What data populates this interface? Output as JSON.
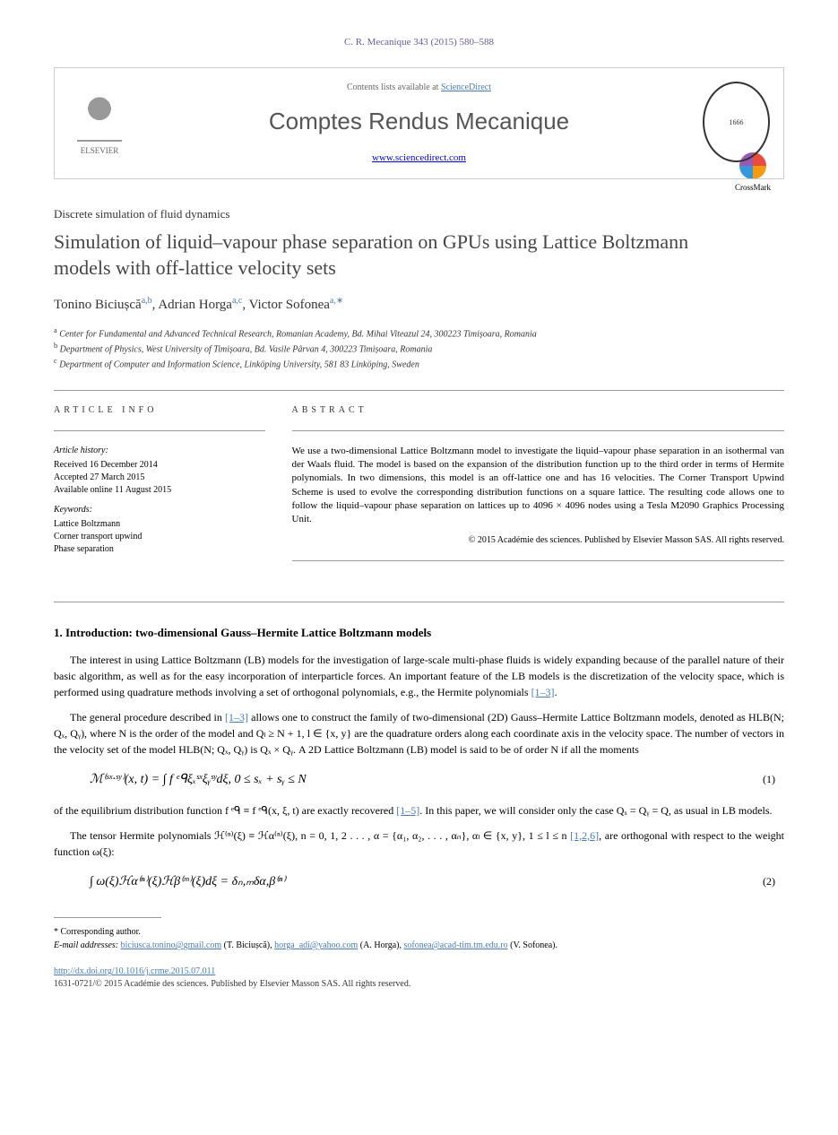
{
  "citation": "C. R. Mecanique 343 (2015) 580–588",
  "banner": {
    "contents_prefix": "Contents lists available at ",
    "contents_link": "ScienceDirect",
    "journal_title": "Comptes Rendus Mecanique",
    "journal_url": "www.sciencedirect.com",
    "elsevier_label": "ELSEVIER"
  },
  "crossmark_label": "CrossMark",
  "article_type": "Discrete simulation of fluid dynamics",
  "title": "Simulation of liquid–vapour phase separation on GPUs using Lattice Boltzmann models with off-lattice velocity sets",
  "authors": [
    {
      "name": "Tonino Biciușcă",
      "affil": "a,b"
    },
    {
      "name": "Adrian Horga",
      "affil": "a,c"
    },
    {
      "name": "Victor Sofonea",
      "affil": "a,∗"
    }
  ],
  "affiliations": [
    {
      "sup": "a",
      "text": "Center for Fundamental and Advanced Technical Research, Romanian Academy, Bd. Mihai Viteazul 24, 300223 Timișoara, Romania"
    },
    {
      "sup": "b",
      "text": "Department of Physics, West University of Timișoara, Bd. Vasile Pârvan 4, 300223 Timișoara, Romania"
    },
    {
      "sup": "c",
      "text": "Department of Computer and Information Science, Linköping University, 581 83 Linköping, Sweden"
    }
  ],
  "info": {
    "heading": "ARTICLE INFO",
    "history_label": "Article history:",
    "received": "Received 16 December 2014",
    "accepted": "Accepted 27 March 2015",
    "online": "Available online 11 August 2015",
    "keywords_label": "Keywords:",
    "keywords": [
      "Lattice Boltzmann",
      "Corner transport upwind",
      "Phase separation"
    ]
  },
  "abstract": {
    "heading": "ABSTRACT",
    "text": "We use a two-dimensional Lattice Boltzmann model to investigate the liquid–vapour phase separation in an isothermal van der Waals fluid. The model is based on the expansion of the distribution function up to the third order in terms of Hermite polynomials. In two dimensions, this model is an off-lattice one and has 16 velocities. The Corner Transport Upwind Scheme is used to evolve the corresponding distribution functions on a square lattice. The resulting code allows one to follow the liquid–vapour phase separation on lattices up to 4096 × 4096 nodes using a Tesla M2090 Graphics Processing Unit.",
    "copyright": "© 2015 Académie des sciences. Published by Elsevier Masson SAS. All rights reserved."
  },
  "section1": {
    "heading": "1. Introduction: two-dimensional Gauss–Hermite Lattice Boltzmann models",
    "para1_a": "The interest in using Lattice Boltzmann (LB) models for the investigation of large-scale multi-phase fluids is widely expanding because of the parallel nature of their basic algorithm, as well as for the easy incorporation of interparticle forces. An important feature of the LB models is the discretization of the velocity space, which is performed using quadrature methods involving a set of orthogonal polynomials, e.g., the Hermite polynomials ",
    "para1_ref": "[1–3]",
    "para2_a": "The general procedure described in ",
    "para2_ref1": "[1–3]",
    "para2_b": " allows one to construct the family of two-dimensional (2D) Gauss–Hermite Lattice Boltzmann models, denoted as HLB(N; Qₓ, Qᵧ), where N is the order of the model and Qₗ ≥ N + 1, l ∈ {x, y} are the quadrature orders along each coordinate axis in the velocity space. The number of vectors in the velocity set of the model HLB(N; Qₓ, Qᵧ) is Qₓ × Qᵧ. A 2D Lattice Boltzmann (LB) model is said to be of order N if all the moments",
    "eq1": "ℳ⁽ˢˣ·ˢʸ⁾(x, t) = ∫ f ᵉᑫξₓˢˣξᵧˢʸdξ,      0 ≤ sₓ + sᵧ ≤ N",
    "eq1_num": "(1)",
    "para3_a": "of the equilibrium distribution function f ᵉᑫ ≡ f ᵉᑫ(x, ξ, t) are exactly recovered ",
    "para3_ref": "[1–5]",
    "para3_b": ". In this paper, we will consider only the case Qₓ = Qᵧ = Q, as usual in LB models.",
    "para4_a": "The tensor Hermite polynomials ℋ⁽ⁿ⁾(ξ) ≡ ℋα⁽ⁿ⁾(ξ), n = 0, 1, 2 . . . , α = {α₁, α₂, . . . , αₙ}, αₗ ∈ {x, y}, 1 ≤ l ≤ n ",
    "para4_ref": "[1,2,6]",
    "para4_b": ", are orthogonal with respect to the weight function ω(ξ):",
    "eq2": "∫ ω(ξ)ℋα⁽ⁿ⁾(ξ)ℋβ⁽ᵐ⁾(ξ)dξ = δₙ,ₘδα,β⁽ⁿ⁾",
    "eq2_num": "(2)"
  },
  "footnotes": {
    "corresponding": "* Corresponding author.",
    "emails_label": "E-mail addresses:",
    "emails": [
      {
        "addr": "biciusca.tonino@gmail.com",
        "who": "(T. Biciușcă)"
      },
      {
        "addr": "horga_adi@yahoo.com",
        "who": "(A. Horga)"
      },
      {
        "addr": "sofonea@acad-tim.tm.edu.ro",
        "who": "(V. Sofonea)"
      }
    ]
  },
  "footer": {
    "doi": "http://dx.doi.org/10.1016/j.crme.2015.07.011",
    "issn_copyright": "1631-0721/© 2015 Académie des sciences. Published by Elsevier Masson SAS. All rights reserved."
  },
  "colors": {
    "link": "#4a7bb5",
    "citation": "#6b5b95",
    "title_gray": "#454545"
  }
}
